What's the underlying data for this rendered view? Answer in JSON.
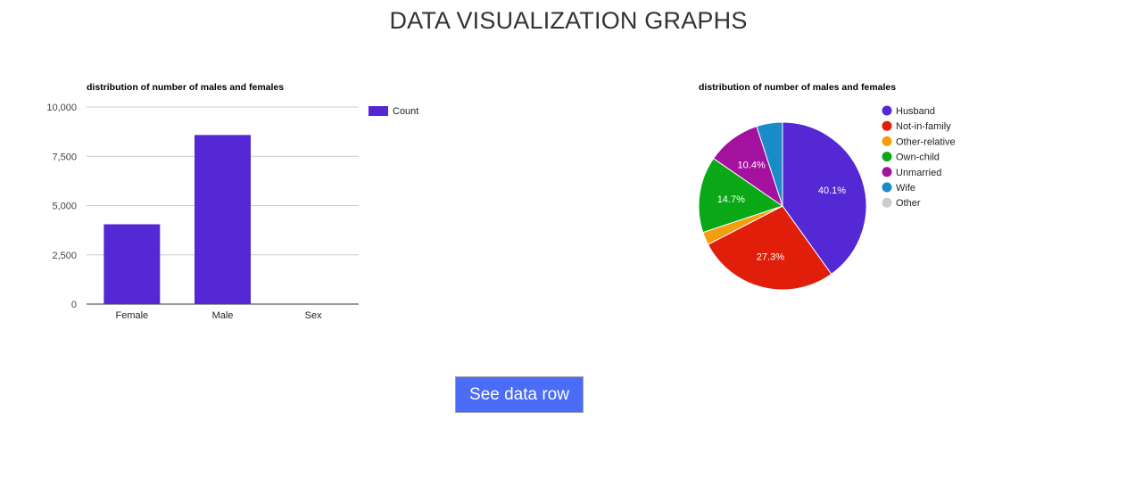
{
  "page": {
    "title": "DATA VISUALIZATION GRAPHS",
    "button_label": "See data row"
  },
  "chart_data": [
    {
      "type": "bar",
      "title": "distribution of number of males and females",
      "categories": [
        "Female",
        "Male",
        "Sex"
      ],
      "series": [
        {
          "name": "Count",
          "values": [
            4050,
            8580,
            0
          ],
          "color": "#5428d4"
        }
      ],
      "yticks": [
        0,
        2500,
        5000,
        7500,
        10000
      ],
      "ytick_labels": [
        "0",
        "2,500",
        "5,000",
        "7,500",
        "10,000"
      ],
      "ylim": [
        0,
        10000
      ],
      "xlabel": "",
      "ylabel": "",
      "grid": true,
      "legend": "right"
    },
    {
      "type": "pie",
      "title": "distribution of number of males and females",
      "legend": "right",
      "slices": [
        {
          "label": "Husband",
          "value": 40.1,
          "color": "#5428d4",
          "pct_label": "40.1%"
        },
        {
          "label": "Not-in-family",
          "value": 27.3,
          "color": "#e01e0a",
          "pct_label": "27.3%"
        },
        {
          "label": "Other-relative",
          "value": 2.5,
          "color": "#f59e0b",
          "pct_label": ""
        },
        {
          "label": "Own-child",
          "value": 14.7,
          "color": "#0aa817",
          "pct_label": "14.7%"
        },
        {
          "label": "Unmarried",
          "value": 10.4,
          "color": "#a3119e",
          "pct_label": "10.4%"
        },
        {
          "label": "Wife",
          "value": 5.0,
          "color": "#1a8bc8",
          "pct_label": ""
        },
        {
          "label": "Other",
          "value": 0.0,
          "color": "#cccccc",
          "pct_label": ""
        }
      ]
    }
  ]
}
